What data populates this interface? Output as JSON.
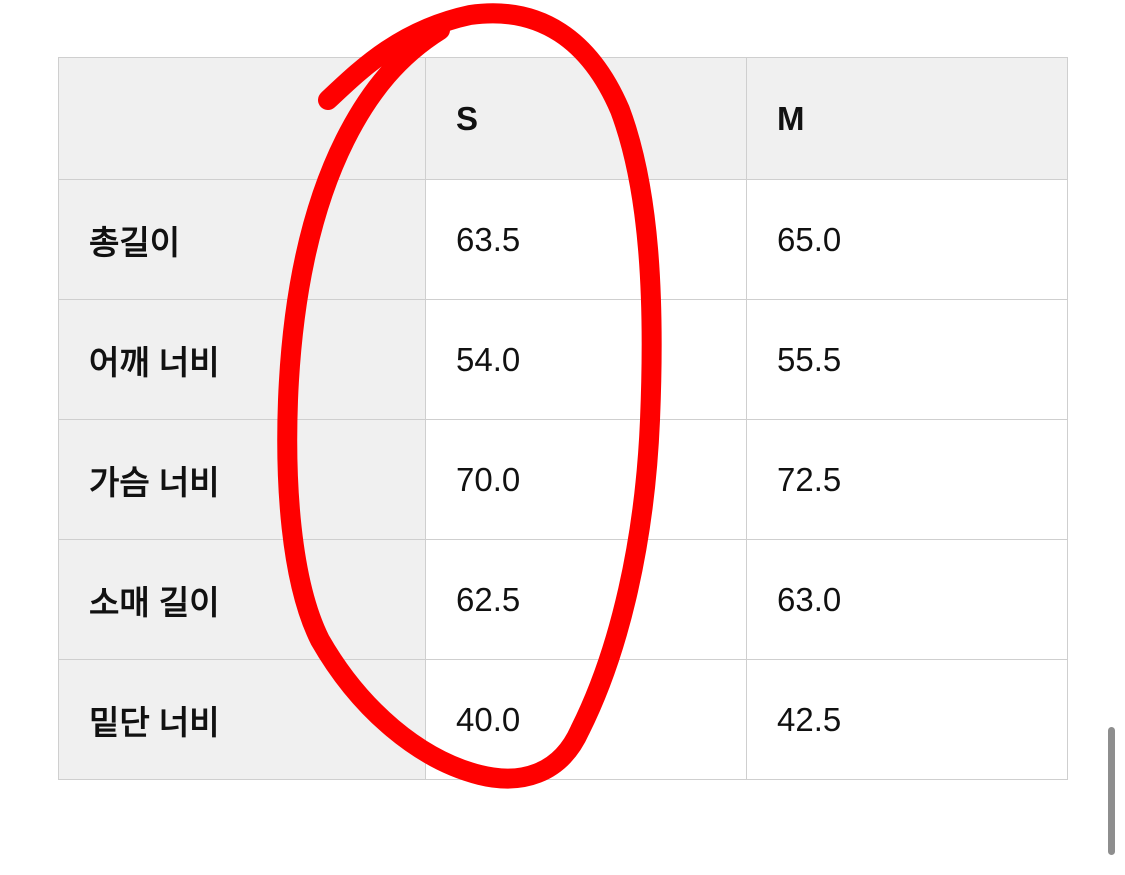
{
  "table": {
    "headers": [
      "",
      "S",
      "M"
    ],
    "rows": [
      {
        "label": "총길이",
        "s": "63.5",
        "m": "65.0"
      },
      {
        "label": "어깨 너비",
        "s": "54.0",
        "m": "55.5"
      },
      {
        "label": "가슴 너비",
        "s": "70.0",
        "m": "72.5"
      },
      {
        "label": "소매 길이",
        "s": "62.5",
        "m": "63.0"
      },
      {
        "label": "밑단 너비",
        "s": "40.0",
        "m": "42.5"
      }
    ]
  },
  "annotation": {
    "color": "#ff0000",
    "target": "S column"
  }
}
